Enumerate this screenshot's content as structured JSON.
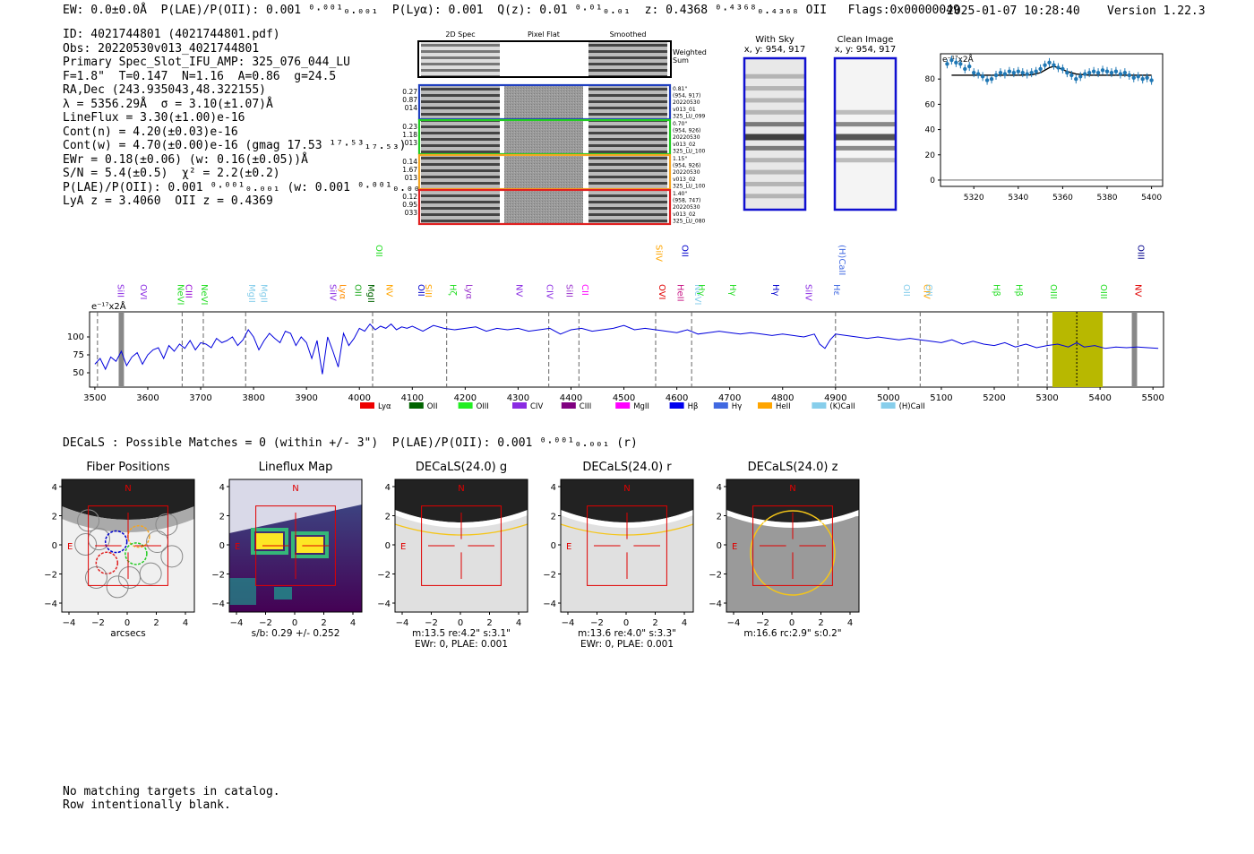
{
  "header": {
    "left": "EW: 0.0±0.0Å  P(LAE)/P(OII): 0.001 ⁰·⁰⁰¹₀.₀₀₁  P(Lyα): 0.001  Q(z): 0.01 ⁰·⁰¹₀.₀₁  z: 0.4368 ⁰·⁴³⁶⁸₀.₄₃₆₈ OII   Flags:0x00000049",
    "datetime": "2025-01-07 10:28:40",
    "version": "Version 1.22.3"
  },
  "info": {
    "lines": [
      "ID: 4021744801 (4021744801.pdf)",
      "Obs: 20220530v013_4021744801",
      "Primary Spec_Slot_IFU_AMP: 325_076_044_LU",
      "F=1.8\"  T=0.147  N=1.16  A=0.86  g=24.5",
      "RA,Dec (243.935043,48.322155)",
      "λ = 5356.29Å  σ = 3.10(±1.07)Å",
      "LineFlux = 3.30(±1.00)e-16",
      "Cont(n) = 4.20(±0.03)e-16",
      "Cont(w) = 4.70(±0.00)e-16 (gmag 17.53 ¹⁷·⁵³₁₇.₅₃)",
      "EWr = 0.18(±0.06) (w: 0.16(±0.05))Å",
      "S/N = 5.4(±0.5)  χ² = 2.2(±0.2)",
      "P(LAE)/P(OII): 0.001 ⁰·⁰⁰¹₀.₀₀₁ (w: 0.001 ⁰·⁰⁰¹₀.₀₀₁)",
      "LyA z = 3.4060  OII z = 0.4369"
    ]
  },
  "cutouts": {
    "col_labels": [
      "2D Spec",
      "Pixel Flat",
      "Smoothed"
    ],
    "weighted_label": "Weighted\nSum",
    "rows": [
      {
        "left": [
          "0.27",
          "0.87",
          "014"
        ],
        "right": [
          "0.81\"",
          "(954, 917)",
          "20220530",
          "v013_01",
          "325_LU_099"
        ],
        "color": "#1f3fbf"
      },
      {
        "left": [
          "0.23",
          "1.18",
          "013"
        ],
        "right": [
          "0.70\"",
          "(954, 926)",
          "20220530",
          "v013_02",
          "325_LU_100"
        ],
        "color": "#22cc22"
      },
      {
        "left": [
          "0.14",
          "1.67",
          "013"
        ],
        "right": [
          "1.15\"",
          "(954, 926)",
          "20220530",
          "v013_02",
          "325_LU_100"
        ],
        "color": "#f5a623"
      },
      {
        "left": [
          "0.12",
          "0.95",
          "033"
        ],
        "right": [
          "1.40\"",
          "(958, 747)",
          "20220530",
          "v013_02",
          "325_LU_080"
        ],
        "color": "#e02020"
      }
    ],
    "with_sky": {
      "title": "With Sky",
      "sub": "x, y: 954, 917"
    },
    "clean": {
      "title": "Clean Image",
      "sub": "x, y: 954, 917"
    }
  },
  "zoom_plot": {
    "yscale_label": "e⁻¹⁷x2Å",
    "y_ticks": [
      "0",
      "20",
      "40",
      "60",
      "80"
    ],
    "x_ticks": [
      "5320",
      "5340",
      "5360",
      "5380",
      "5400"
    ]
  },
  "full_spectrum": {
    "yscale_label": "e⁻¹⁷x2Å",
    "y_ticks": [
      "50",
      "75",
      "100"
    ],
    "x_ticks": [
      "3500",
      "3600",
      "3700",
      "3800",
      "3900",
      "4000",
      "4100",
      "4200",
      "4300",
      "4400",
      "4500",
      "4600",
      "4700",
      "4800",
      "4900",
      "5000",
      "5100",
      "5200",
      "5300",
      "5400",
      "5500"
    ],
    "lines": [
      {
        "name": "SiII",
        "w": 3547,
        "color": "#8a2be2"
      },
      {
        "name": "OVI",
        "w": 3580,
        "color": "#8a2be2"
      },
      {
        "name": "NeVI",
        "w": 3660,
        "color": "#22dd22"
      },
      {
        "name": "CIII",
        "w": 3665,
        "color": "#9400d3"
      },
      {
        "name": "NeVI",
        "w": 3705,
        "color": "#22dd22"
      },
      {
        "name": "MgII",
        "w": 3785,
        "color": "#87ceeb"
      },
      {
        "name": "MgII",
        "w": 3818,
        "color": "#87ceeb"
      },
      {
        "name": "SiIV",
        "w": 3938,
        "color": "#8a2be2"
      },
      {
        "name": "Lyα",
        "w": 3967,
        "color": "#ff8c00"
      },
      {
        "name": "OII",
        "w": 3985,
        "color": "#22aa22"
      },
      {
        "name": "MgII",
        "w": 4020,
        "color": "#006400"
      },
      {
        "name": "OII",
        "w": 4025,
        "color": "#22dd22"
      },
      {
        "name": "NV",
        "w": 4055,
        "color": "#ffa500"
      },
      {
        "name": "OII",
        "w": 4105,
        "color": "#0000cd"
      },
      {
        "name": "SiII",
        "w": 4128,
        "color": "#ffa500"
      },
      {
        "name": "Hζ",
        "w": 4165,
        "color": "#22dd22"
      },
      {
        "name": "Lyα",
        "w": 4205,
        "color": "#9932cc"
      },
      {
        "name": "NV",
        "w": 4290,
        "color": "#8a2be2"
      },
      {
        "name": "CIV",
        "w": 4358,
        "color": "#8a2be2"
      },
      {
        "name": "SiII",
        "w": 4385,
        "color": "#9932cc"
      },
      {
        "name": "CII",
        "w": 4425,
        "color": "#ff00ff"
      },
      {
        "name": "OVI",
        "w": 4560,
        "color": "#e00000"
      },
      {
        "name": "SiIV",
        "w": 4564,
        "color": "#ffa500"
      },
      {
        "name": "OII",
        "w": 4603,
        "color": "#0000cd"
      },
      {
        "name": "HeII",
        "w": 4605,
        "color": "#c71585"
      },
      {
        "name": "NeVI",
        "w": 4628,
        "color": "#87ceeb"
      },
      {
        "name": "Hγ",
        "w": 4645,
        "color": "#22dd22"
      },
      {
        "name": "Hγ",
        "w": 4694,
        "color": "#22dd22"
      },
      {
        "name": "Hγ",
        "w": 4785,
        "color": "#0000cd"
      },
      {
        "name": "SiIV",
        "w": 4837,
        "color": "#8a2be2"
      },
      {
        "name": "Hε",
        "w": 4900,
        "color": "#4169e1"
      },
      {
        "name": "(H)CaII",
        "w": 4900,
        "color": "#4169e1"
      },
      {
        "name": "OII",
        "w": 5032,
        "color": "#87ceeb"
      },
      {
        "name": "CIV",
        "w": 5060,
        "color": "#ffa500"
      },
      {
        "name": "OII",
        "w": 5075,
        "color": "#87ceeb"
      },
      {
        "name": "Hβ",
        "w": 5192,
        "color": "#22dd22"
      },
      {
        "name": "Hβ",
        "w": 5245,
        "color": "#22dd22"
      },
      {
        "name": "OIII",
        "w": 5300,
        "color": "#22dd22"
      },
      {
        "name": "OIII",
        "w": 5405,
        "color": "#22dd22"
      },
      {
        "name": "OIII",
        "w": 5465,
        "color": "#00008b"
      },
      {
        "name": "NV",
        "w": 5470,
        "color": "#e00000"
      }
    ],
    "legend": [
      {
        "label": "Lyα",
        "color": "#ee0000"
      },
      {
        "label": "OII",
        "color": "#006400"
      },
      {
        "label": "OIII",
        "color": "#22ee22"
      },
      {
        "label": "CIV",
        "color": "#8a2be2"
      },
      {
        "label": "CIII",
        "color": "#800080"
      },
      {
        "label": "MgII",
        "color": "#ff00ff"
      },
      {
        "label": "Hβ",
        "color": "#0000ee"
      },
      {
        "label": "Hγ",
        "color": "#4169e1"
      },
      {
        "label": "HeII",
        "color": "#ffa500"
      },
      {
        "label": "(K)CaII",
        "color": "#87ceeb"
      },
      {
        "label": "(H)CaII",
        "color": "#87ceeb"
      }
    ]
  },
  "decals": {
    "summary": "DECaLS : Possible Matches = 0 (within +/- 3\")  P(LAE)/P(OII): 0.001 ⁰·⁰⁰¹₀.₀₀₁ (r)",
    "panels": [
      {
        "title": "Fiber Positions",
        "sub": "arcsecs",
        "sub2": ""
      },
      {
        "title": "Lineflux Map",
        "sub": "s/b: 0.29 +/- 0.252",
        "sub2": ""
      },
      {
        "title": "DECaLS(24.0) g",
        "sub": "m:13.5  re:4.2\"  s:3.1\"",
        "sub2": "EWr: 0, PLAE: 0.001"
      },
      {
        "title": "DECaLS(24.0) r",
        "sub": "m:13.6  re:4.0\"  s:3.3\"",
        "sub2": "EWr: 0, PLAE: 0.001"
      },
      {
        "title": "DECaLS(24.0) z",
        "sub": "m:16.6 rc:2.9\"  s:0.2\"",
        "sub2": ""
      }
    ],
    "y_ticks": [
      "4",
      "2",
      "0",
      "−2",
      "−4"
    ],
    "x_ticks": [
      "−4",
      "−2",
      "0",
      "2",
      "4"
    ],
    "n_label": "N",
    "e_label": "E"
  },
  "footer": {
    "line1": "No matching targets in catalog.",
    "line2": "Row intentionally blank."
  },
  "chart_data": [
    {
      "type": "scatter",
      "title": "",
      "xlabel": "",
      "ylabel": "",
      "xlim": [
        5305,
        5405
      ],
      "ylim": [
        -5,
        100
      ],
      "x": [
        5308,
        5310,
        5312,
        5314,
        5316,
        5318,
        5320,
        5322,
        5324,
        5326,
        5328,
        5330,
        5332,
        5334,
        5336,
        5338,
        5340,
        5342,
        5344,
        5346,
        5348,
        5350,
        5352,
        5354,
        5356,
        5358,
        5360,
        5362,
        5364,
        5366,
        5368,
        5370,
        5372,
        5374,
        5376,
        5378,
        5380,
        5382,
        5384,
        5386,
        5388,
        5390,
        5392,
        5394,
        5396,
        5398,
        5400
      ],
      "y": [
        92,
        95,
        93,
        92,
        88,
        90,
        85,
        84,
        82,
        79,
        80,
        83,
        85,
        84,
        86,
        85,
        86,
        85,
        84,
        85,
        86,
        88,
        91,
        93,
        91,
        89,
        88,
        85,
        83,
        80,
        82,
        84,
        85,
        86,
        85,
        87,
        86,
        85,
        86,
        84,
        85,
        83,
        81,
        82,
        80,
        81,
        79
      ],
      "fit_x": [
        5310,
        5340,
        5346,
        5350,
        5354,
        5356,
        5358,
        5362,
        5366,
        5372,
        5400
      ],
      "fit_y": [
        83,
        83,
        83.3,
        85,
        89,
        90,
        89,
        86,
        84,
        83,
        83
      ]
    },
    {
      "type": "line",
      "title": "",
      "xlabel": "",
      "ylabel": "",
      "xlim": [
        3490,
        5520
      ],
      "ylim": [
        30,
        135
      ],
      "x": [
        3500,
        3510,
        3520,
        3530,
        3540,
        3550,
        3560,
        3570,
        3580,
        3590,
        3600,
        3610,
        3620,
        3630,
        3640,
        3650,
        3660,
        3670,
        3680,
        3690,
        3700,
        3710,
        3720,
        3730,
        3740,
        3750,
        3760,
        3770,
        3780,
        3790,
        3800,
        3810,
        3820,
        3830,
        3840,
        3850,
        3860,
        3870,
        3880,
        3890,
        3900,
        3910,
        3920,
        3930,
        3940,
        3950,
        3960,
        3970,
        3980,
        3990,
        4000,
        4010,
        4020,
        4030,
        4040,
        4050,
        4060,
        4070,
        4080,
        4090,
        4100,
        4120,
        4140,
        4160,
        4180,
        4200,
        4220,
        4240,
        4260,
        4280,
        4300,
        4320,
        4340,
        4360,
        4380,
        4400,
        4420,
        4440,
        4460,
        4480,
        4500,
        4520,
        4540,
        4560,
        4580,
        4600,
        4620,
        4640,
        4660,
        4680,
        4700,
        4720,
        4740,
        4760,
        4780,
        4800,
        4820,
        4840,
        4860,
        4870,
        4880,
        4890,
        4900,
        4920,
        4940,
        4960,
        4980,
        5000,
        5020,
        5040,
        5060,
        5080,
        5100,
        5120,
        5140,
        5160,
        5180,
        5200,
        5220,
        5240,
        5260,
        5280,
        5300,
        5320,
        5340,
        5356,
        5370,
        5390,
        5410,
        5430,
        5450,
        5470,
        5490,
        5510
      ],
      "y": [
        62,
        70,
        55,
        72,
        66,
        80,
        60,
        72,
        78,
        62,
        75,
        82,
        85,
        70,
        88,
        80,
        90,
        84,
        95,
        82,
        92,
        90,
        85,
        98,
        92,
        95,
        100,
        88,
        96,
        110,
        100,
        82,
        95,
        105,
        98,
        92,
        108,
        105,
        88,
        100,
        92,
        70,
        95,
        48,
        100,
        80,
        58,
        105,
        88,
        98,
        112,
        108,
        118,
        110,
        115,
        112,
        118,
        110,
        114,
        112,
        115,
        108,
        116,
        112,
        110,
        112,
        114,
        108,
        112,
        110,
        112,
        108,
        110,
        112,
        104,
        110,
        112,
        108,
        110,
        112,
        116,
        110,
        112,
        110,
        108,
        106,
        110,
        104,
        106,
        108,
        106,
        104,
        106,
        104,
        102,
        104,
        102,
        100,
        104,
        90,
        84,
        96,
        104,
        102,
        100,
        98,
        100,
        98,
        96,
        98,
        96,
        94,
        92,
        96,
        90,
        94,
        90,
        88,
        92,
        86,
        90,
        85,
        88,
        90,
        86,
        92,
        86,
        88,
        84,
        86,
        85,
        86,
        85,
        84
      ]
    }
  ]
}
